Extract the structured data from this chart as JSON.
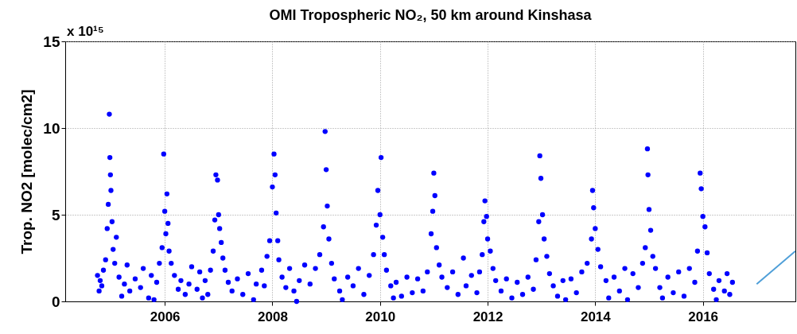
{
  "chart_data": {
    "type": "scatter",
    "title": "OMI Tropospheric NO₂, 50 km around Kinshasa",
    "ylabel": "Trop. NO2 [molec/cm2]",
    "annotations": [
      "x 10¹⁵"
    ],
    "xlim": [
      2004.15,
      2017.72
    ],
    "xticks": [
      2006,
      2008,
      2010,
      2012,
      2014,
      2016
    ],
    "ylim": [
      0,
      15
    ],
    "yticks": [
      0,
      5,
      10,
      15
    ],
    "grid": true,
    "series": [
      {
        "marker": "circle",
        "color": "#0000ff",
        "x": [
          2004.75,
          2004.78,
          2004.8,
          2004.83,
          2004.86,
          2004.9,
          2004.93,
          2004.95,
          2004.97,
          2004.98,
          2004.99,
          2005.0,
          2005.02,
          2005.04,
          2005.07,
          2005.1,
          2005.15,
          2005.2,
          2005.25,
          2005.3,
          2005.35,
          2005.45,
          2005.55,
          2005.6,
          2005.7,
          2005.75,
          2005.8,
          2005.85,
          2005.9,
          2005.95,
          2005.98,
          2006.0,
          2006.02,
          2006.04,
          2006.06,
          2006.08,
          2006.12,
          2006.18,
          2006.25,
          2006.3,
          2006.38,
          2006.45,
          2006.5,
          2006.6,
          2006.65,
          2006.7,
          2006.75,
          2006.8,
          2006.85,
          2006.9,
          2006.93,
          2006.95,
          2006.98,
          2007.0,
          2007.02,
          2007.05,
          2007.08,
          2007.12,
          2007.18,
          2007.25,
          2007.35,
          2007.45,
          2007.55,
          2007.65,
          2007.7,
          2007.8,
          2007.85,
          2007.9,
          2007.95,
          2008.0,
          2008.03,
          2008.05,
          2008.07,
          2008.1,
          2008.12,
          2008.18,
          2008.25,
          2008.32,
          2008.4,
          2008.45,
          2008.5,
          2008.6,
          2008.7,
          2008.8,
          2008.88,
          2008.95,
          2008.98,
          2009.0,
          2009.02,
          2009.05,
          2009.1,
          2009.15,
          2009.25,
          2009.3,
          2009.4,
          2009.5,
          2009.6,
          2009.7,
          2009.8,
          2009.88,
          2009.93,
          2009.96,
          2010.0,
          2010.02,
          2010.05,
          2010.08,
          2010.12,
          2010.2,
          2010.25,
          2010.3,
          2010.4,
          2010.5,
          2010.6,
          2010.7,
          2010.8,
          2010.88,
          2010.95,
          2010.98,
          2011.0,
          2011.02,
          2011.05,
          2011.1,
          2011.15,
          2011.25,
          2011.35,
          2011.45,
          2011.55,
          2011.6,
          2011.7,
          2011.8,
          2011.85,
          2011.9,
          2011.93,
          2011.95,
          2011.98,
          2012.0,
          2012.05,
          2012.1,
          2012.15,
          2012.25,
          2012.35,
          2012.45,
          2012.55,
          2012.65,
          2012.75,
          2012.85,
          2012.9,
          2012.95,
          2012.97,
          2012.99,
          2013.02,
          2013.05,
          2013.1,
          2013.15,
          2013.22,
          2013.3,
          2013.4,
          2013.45,
          2013.55,
          2013.65,
          2013.75,
          2013.85,
          2013.93,
          2013.95,
          2013.97,
          2014.0,
          2014.05,
          2014.1,
          2014.2,
          2014.25,
          2014.35,
          2014.45,
          2014.55,
          2014.6,
          2014.7,
          2014.8,
          2014.88,
          2014.93,
          2014.97,
          2014.98,
          2015.0,
          2015.03,
          2015.07,
          2015.12,
          2015.2,
          2015.25,
          2015.35,
          2015.45,
          2015.55,
          2015.65,
          2015.75,
          2015.85,
          2015.9,
          2015.95,
          2015.97,
          2016.0,
          2016.04,
          2016.08,
          2016.12,
          2016.2,
          2016.25,
          2016.3,
          2016.4,
          2016.45,
          2016.5,
          2016.55
        ],
        "values": [
          1.5,
          0.6,
          1.2,
          0.9,
          1.8,
          2.4,
          4.2,
          5.6,
          10.8,
          8.3,
          7.3,
          6.4,
          4.6,
          3.0,
          2.2,
          3.7,
          1.4,
          0.3,
          1.0,
          2.1,
          0.6,
          1.3,
          0.8,
          1.9,
          0.2,
          1.5,
          0.1,
          1.1,
          2.2,
          3.1,
          8.5,
          5.2,
          3.9,
          6.2,
          4.5,
          2.9,
          2.2,
          1.5,
          0.7,
          1.2,
          0.4,
          1.0,
          2.0,
          0.7,
          1.7,
          0.2,
          1.2,
          0.4,
          1.8,
          2.9,
          4.7,
          7.3,
          7.0,
          5.0,
          4.2,
          3.4,
          2.5,
          1.8,
          1.1,
          0.6,
          1.3,
          0.4,
          1.6,
          0.1,
          1.0,
          1.8,
          0.9,
          2.6,
          3.5,
          6.6,
          8.5,
          7.3,
          5.1,
          3.5,
          2.4,
          1.4,
          0.8,
          1.9,
          0.6,
          0.0,
          1.2,
          2.1,
          1.0,
          1.9,
          2.7,
          4.3,
          9.8,
          7.6,
          5.5,
          3.6,
          2.2,
          1.3,
          0.6,
          0.1,
          1.4,
          0.9,
          1.9,
          0.4,
          1.5,
          2.7,
          4.4,
          6.4,
          5.0,
          8.3,
          3.7,
          2.7,
          1.8,
          0.9,
          0.2,
          1.1,
          0.3,
          1.4,
          0.5,
          1.3,
          0.6,
          1.7,
          3.9,
          5.2,
          7.4,
          6.1,
          3.1,
          2.1,
          1.4,
          0.8,
          1.7,
          0.4,
          2.5,
          0.9,
          1.5,
          0.5,
          1.7,
          2.7,
          4.6,
          5.8,
          4.9,
          3.6,
          2.9,
          1.9,
          1.2,
          0.6,
          1.3,
          0.2,
          1.1,
          0.4,
          1.4,
          0.7,
          2.4,
          4.6,
          8.4,
          7.1,
          5.0,
          3.6,
          2.6,
          1.6,
          0.9,
          0.3,
          1.2,
          0.1,
          1.3,
          0.5,
          1.7,
          2.2,
          3.6,
          6.4,
          5.4,
          4.2,
          3.0,
          2.0,
          1.2,
          0.2,
          1.4,
          0.6,
          1.9,
          0.1,
          1.6,
          0.8,
          2.2,
          3.1,
          8.8,
          7.3,
          5.3,
          4.1,
          2.6,
          1.9,
          0.8,
          0.2,
          1.4,
          0.5,
          1.7,
          0.3,
          1.9,
          1.1,
          2.9,
          7.4,
          6.5,
          4.9,
          4.3,
          2.8,
          1.6,
          0.7,
          0.1,
          1.2,
          0.6,
          1.6,
          0.4,
          1.1
        ]
      },
      {
        "type": "line",
        "marker": "none",
        "color": "#4f9fd8",
        "x": [
          2017.0,
          2017.72
        ],
        "values": [
          1.0,
          2.9
        ]
      }
    ]
  }
}
